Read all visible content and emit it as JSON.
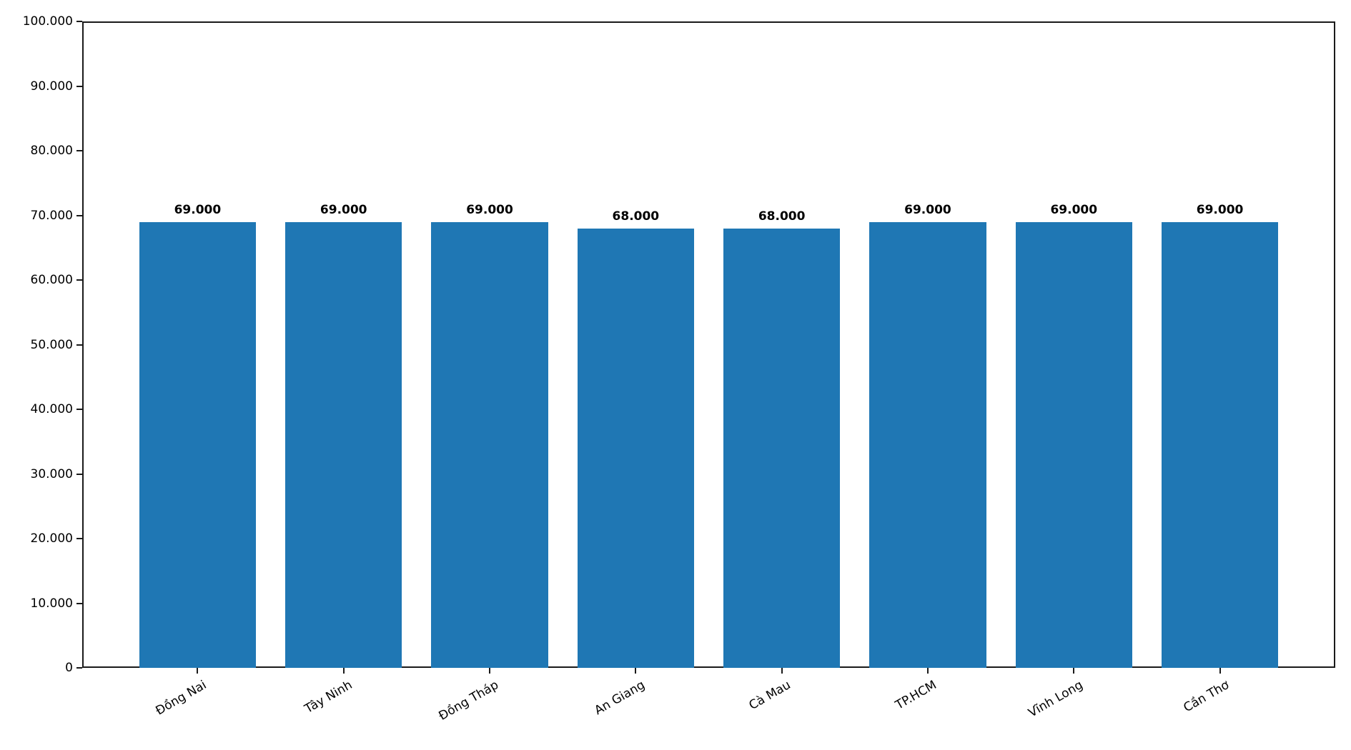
{
  "chart_data": {
    "type": "bar",
    "title": "",
    "xlabel": "",
    "ylabel": "",
    "categories": [
      "Đồng Nai",
      "Tây Ninh",
      "Đồng Tháp",
      "An Giang",
      "Cà Mau",
      "TP.HCM",
      "Vĩnh Long",
      "Cần Thơ"
    ],
    "values": [
      69000,
      69000,
      69000,
      68000,
      68000,
      69000,
      69000,
      69000
    ],
    "value_labels": [
      "69.000",
      "69.000",
      "69.000",
      "68.000",
      "68.000",
      "69.000",
      "69.000",
      "69.000"
    ],
    "ylim": [
      0,
      100000
    ],
    "y_ticks": [
      0,
      10000,
      20000,
      30000,
      40000,
      50000,
      60000,
      70000,
      80000,
      90000,
      100000
    ],
    "y_tick_labels": [
      "0",
      "10.000",
      "20.000",
      "30.000",
      "40.000",
      "50.000",
      "60.000",
      "70.000",
      "80.000",
      "90.000",
      "100.000"
    ],
    "x_label_rotation_deg": 30,
    "grid": false,
    "legend_position": "none",
    "bar_color": "#1f77b4",
    "axis_color": "#1a1a1a",
    "text_color": "#000000",
    "background_color": "#ffffff",
    "bar_width_fraction": 0.8
  }
}
